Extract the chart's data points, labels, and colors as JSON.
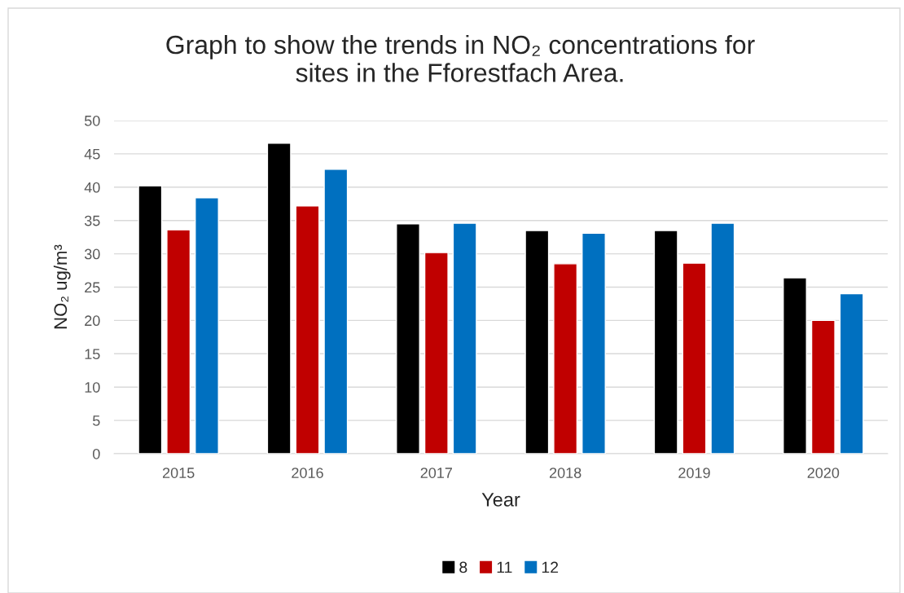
{
  "chart_data": {
    "type": "bar",
    "title": "Graph to show the trends in NO₂ concentrations for\nsites in the Fforestfach Area.",
    "xlabel": "Year",
    "ylabel": "NO₂ ug/m³",
    "categories": [
      "2015",
      "2016",
      "2017",
      "2018",
      "2019",
      "2020"
    ],
    "series": [
      {
        "name": "8",
        "color": "#000000",
        "values": [
          40.2,
          46.6,
          34.5,
          33.5,
          33.5,
          26.4
        ]
      },
      {
        "name": "11",
        "color": "#c00000",
        "values": [
          33.6,
          37.2,
          30.2,
          28.5,
          28.6,
          20.0
        ]
      },
      {
        "name": "12",
        "color": "#0070c0",
        "values": [
          38.4,
          42.7,
          34.6,
          33.1,
          34.6,
          24.0
        ]
      }
    ],
    "ylim": [
      0,
      50
    ],
    "yticks": [
      0,
      5,
      10,
      15,
      20,
      25,
      30,
      35,
      40,
      45,
      50
    ],
    "grid": "y",
    "legend": "bottom"
  }
}
